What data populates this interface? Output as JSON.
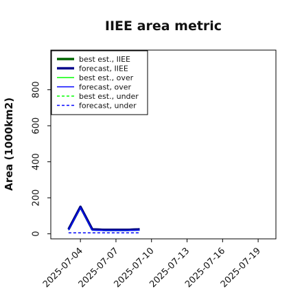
{
  "chart_data": {
    "type": "line",
    "title": "IIEE area metric",
    "xlabel": "",
    "ylabel": "Area (1000km2)",
    "ylim": [
      -28,
      1020
    ],
    "yticks": [
      0,
      200,
      400,
      600,
      800
    ],
    "x_tick_labels": [
      "2025-07-04",
      "2025-07-07",
      "2025-07-10",
      "2025-07-13",
      "2025-07-16",
      "2025-07-19"
    ],
    "highlighted_tick": "2025-07-10",
    "highlight_color": "#228B22",
    "grid": false,
    "legend_position": "top-left",
    "x": [
      "2025-07-03",
      "2025-07-04",
      "2025-07-05",
      "2025-07-06",
      "2025-07-07",
      "2025-07-08",
      "2025-07-09"
    ],
    "series": [
      {
        "name": "best est., IIEE",
        "color": "#006400",
        "width": 3.5,
        "dash": "solid",
        "values": [
          25,
          150,
          25,
          22,
          22,
          22,
          25
        ]
      },
      {
        "name": "forecast, IIEE",
        "color": "#00008B",
        "width": 3.5,
        "dash": "solid",
        "values": [
          25,
          150,
          25,
          22,
          22,
          22,
          25
        ]
      },
      {
        "name": "best est., over",
        "color": "#00FF00",
        "width": 1.5,
        "dash": "solid",
        "values": [
          20,
          145,
          20,
          18,
          18,
          18,
          20
        ]
      },
      {
        "name": "forecast, over",
        "color": "#0000FF",
        "width": 1.5,
        "dash": "solid",
        "values": [
          20,
          145,
          20,
          18,
          18,
          18,
          20
        ]
      },
      {
        "name": "best est., under",
        "color": "#00FF00",
        "width": 1.5,
        "dash": "dashed",
        "values": [
          5,
          5,
          5,
          5,
          5,
          5,
          5
        ]
      },
      {
        "name": "forecast, under",
        "color": "#0000FF",
        "width": 1.5,
        "dash": "dashed",
        "values": [
          5,
          5,
          5,
          5,
          5,
          5,
          5
        ]
      }
    ]
  }
}
